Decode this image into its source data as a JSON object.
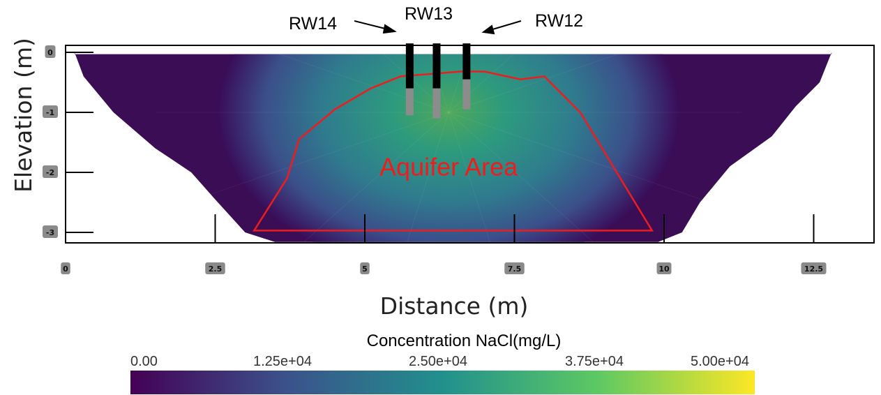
{
  "chart_data": {
    "type": "heatmap",
    "title": "",
    "xlabel": "Distance (m)",
    "ylabel": "Elevation (m)",
    "xlim": [
      0,
      13.4
    ],
    "ylim": [
      -3.2,
      0.1
    ],
    "x_ticks": [
      "0",
      "2.5",
      "5",
      "7.5",
      "10",
      "12.5"
    ],
    "x_tick_values": [
      0,
      2.5,
      5,
      7.5,
      10,
      12.5
    ],
    "y_ticks": [
      "0",
      "-1",
      "-2",
      "-3"
    ],
    "y_tick_values": [
      0,
      -1,
      -2,
      -3
    ],
    "colorbar": {
      "title": "Concentration NaCl(mg/L)",
      "min": 0,
      "max": 50000,
      "tick_labels": [
        "0.00",
        "1.25e+04",
        "2.50e+04",
        "3.75e+04",
        "5.00e+04"
      ],
      "colormap": [
        "#440154",
        "#3b528b",
        "#21908d",
        "#5dc963",
        "#fde725"
      ]
    },
    "plume": {
      "center_x": 6.4,
      "center_y": -1.0,
      "peak_concentration": 30000,
      "background_concentration": 0
    },
    "wells": [
      {
        "name": "RW14",
        "x": 5.75,
        "top": 0.3,
        "casing_bottom": -0.6,
        "screen_bottom": -1.05
      },
      {
        "name": "RW13",
        "x": 6.2,
        "top": 0.3,
        "casing_bottom": -0.6,
        "screen_bottom": -1.1
      },
      {
        "name": "RW12",
        "x": 6.7,
        "top": 0.3,
        "casing_bottom": -0.45,
        "screen_bottom": -0.95
      }
    ],
    "aquifer_polygon": {
      "label": "Aquifer Area",
      "color": "#ee1c1c",
      "points": [
        [
          3.15,
          -2.97
        ],
        [
          3.7,
          -2.1
        ],
        [
          3.9,
          -1.45
        ],
        [
          4.5,
          -0.95
        ],
        [
          5.1,
          -0.6
        ],
        [
          5.6,
          -0.4
        ],
        [
          6.6,
          -0.32
        ],
        [
          7.0,
          -0.32
        ],
        [
          7.6,
          -0.45
        ],
        [
          8.0,
          -0.4
        ],
        [
          8.6,
          -1.0
        ],
        [
          9.8,
          -2.97
        ]
      ]
    },
    "domain_outline": {
      "top_y": -0.03,
      "left_edge": [
        [
          0.15,
          0.0
        ],
        [
          0.3,
          -0.4
        ],
        [
          0.8,
          -1.0
        ],
        [
          1.5,
          -1.6
        ],
        [
          2.1,
          -2.0
        ],
        [
          2.5,
          -2.45
        ],
        [
          3.0,
          -3.0
        ],
        [
          3.5,
          -3.16
        ]
      ],
      "right_edge": [
        [
          12.8,
          0.0
        ],
        [
          12.6,
          -0.5
        ],
        [
          12.2,
          -0.9
        ],
        [
          11.8,
          -1.4
        ],
        [
          11.1,
          -1.9
        ],
        [
          10.6,
          -2.5
        ],
        [
          10.3,
          -3.0
        ],
        [
          9.9,
          -3.16
        ]
      ]
    }
  },
  "labels": {
    "rw14": "RW14",
    "rw13": "RW13",
    "rw12": "RW12",
    "aquifer": "Aquifer Area"
  }
}
